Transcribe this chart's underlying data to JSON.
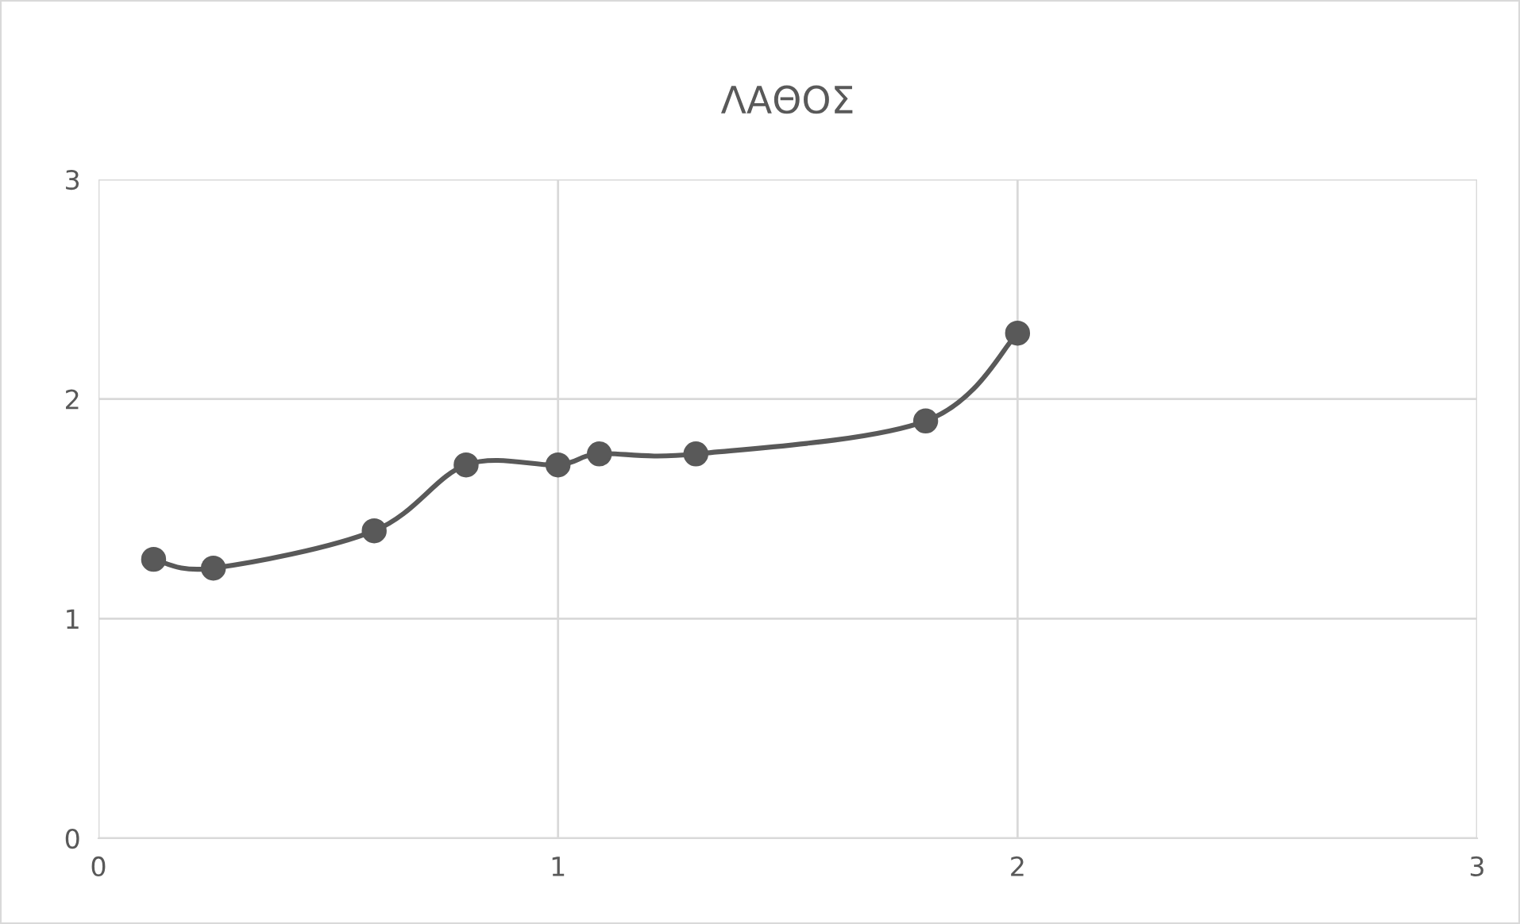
{
  "chart_data": {
    "type": "line",
    "title": "ΛΑΘΟΣ",
    "x": [
      0.12,
      0.25,
      0.6,
      0.8,
      1.0,
      1.09,
      1.3,
      1.8,
      2.0
    ],
    "series": [
      {
        "color": "#595959",
        "values": [
          1.27,
          1.23,
          1.4,
          1.7,
          1.7,
          1.75,
          1.75,
          1.9,
          2.3
        ]
      }
    ],
    "xlim": [
      0,
      3
    ],
    "ylim": [
      0,
      3
    ],
    "xticks": [
      0,
      1,
      2,
      3
    ],
    "yticks": [
      0,
      1,
      2,
      3
    ],
    "grid": true,
    "marker": "circle",
    "line_style": "solid"
  }
}
